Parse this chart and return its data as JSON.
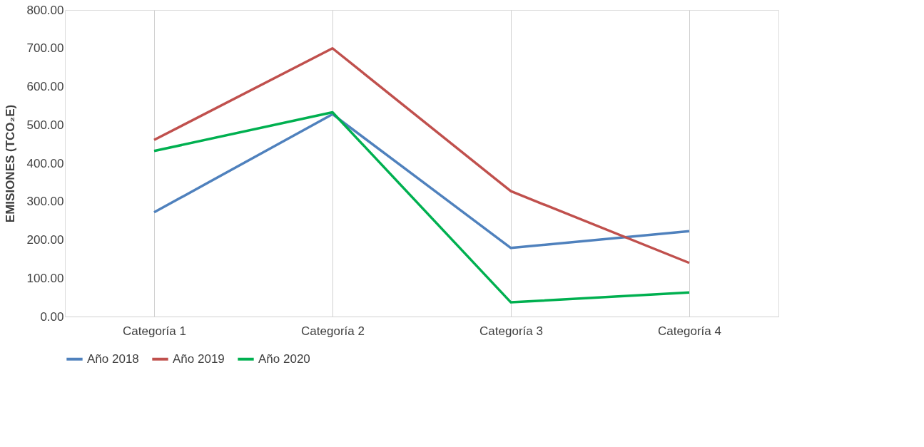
{
  "chart_data": {
    "type": "line",
    "ylabel": "EMISIONES    (TCO₂E)",
    "categories": [
      "Categoría 1",
      "Categoría 2",
      "Categoría 3",
      "Categoría 4"
    ],
    "series": [
      {
        "name": "Año 2018",
        "color": "#4f81bd",
        "values": [
          272,
          528,
          179,
          223
        ]
      },
      {
        "name": "Año 2019",
        "color": "#c0504d",
        "values": [
          461,
          700,
          327,
          140
        ]
      },
      {
        "name": "Año 2020",
        "color": "#00b050",
        "values": [
          432,
          533,
          37,
          63
        ]
      }
    ],
    "ylim": [
      0,
      800
    ],
    "yticks": [
      {
        "value": 0,
        "label": "0.00"
      },
      {
        "value": 100,
        "label": "100.00"
      },
      {
        "value": 200,
        "label": "200.00"
      },
      {
        "value": 300,
        "label": "300.00"
      },
      {
        "value": 400,
        "label": "400.00"
      },
      {
        "value": 500,
        "label": "500.00"
      },
      {
        "value": 600,
        "label": "600.00"
      },
      {
        "value": 700,
        "label": "700.00"
      },
      {
        "value": 800,
        "label": "800.00"
      }
    ],
    "grid": "x",
    "legend": "bottom",
    "marker": "none",
    "line_style": "solid"
  }
}
